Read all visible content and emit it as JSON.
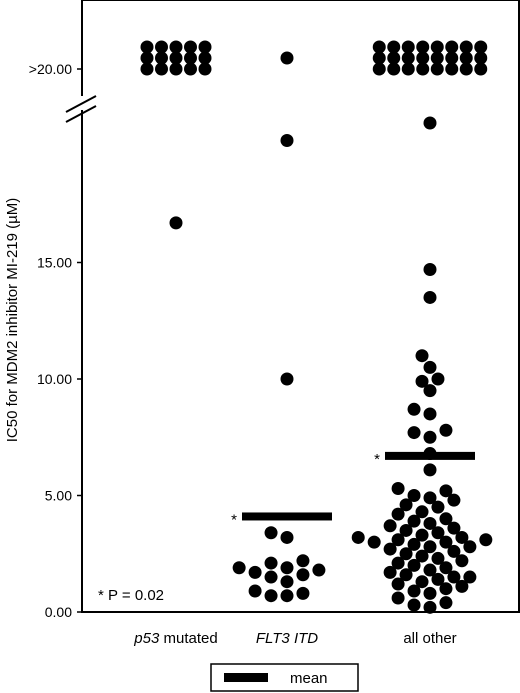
{
  "chart_data": {
    "type": "scatter",
    "ylabel": "IC50 for MDM2 inhibitor MI-219 (µM)",
    "y_ticks": [
      "0.00",
      "5.00",
      "10.00",
      "15.00"
    ],
    "y_top_label": ">20.00",
    "ylim": [
      0,
      22
    ],
    "axis_break": "between 17 and 20",
    "grid": false,
    "categories": [
      {
        "italic": "p53",
        "rest": " mutated"
      },
      {
        "italic": "FLT3 ITD",
        "rest": ""
      },
      {
        "italic": "",
        "rest": "all other"
      }
    ],
    "series": [
      {
        "category": "p53 mutated",
        "above_20": 15,
        "values": [
          16.7
        ],
        "mean": null,
        "mean_marker": ""
      },
      {
        "category": "FLT3 ITD",
        "above_20": 1,
        "values": [
          19.0,
          10.0,
          3.4,
          3.2,
          2.2,
          2.1,
          1.9,
          1.9,
          1.8,
          1.7,
          1.6,
          1.5,
          1.3,
          0.9,
          0.8,
          0.7,
          0.7
        ],
        "mean": 4.1,
        "mean_marker": "*"
      },
      {
        "category": "all other",
        "above_20": 24,
        "values": [
          19.5,
          14.7,
          13.5,
          11.0,
          10.5,
          10.0,
          9.9,
          9.5,
          8.7,
          8.5,
          7.8,
          7.7,
          7.5,
          6.8,
          6.1,
          5.3,
          5.2,
          5.0,
          4.9,
          4.8,
          4.6,
          4.5,
          4.3,
          4.2,
          4.0,
          3.9,
          3.8,
          3.7,
          3.6,
          3.5,
          3.4,
          3.3,
          3.2,
          3.2,
          3.1,
          3.1,
          3.0,
          3.0,
          2.9,
          2.8,
          2.8,
          2.7,
          2.6,
          2.5,
          2.4,
          2.3,
          2.2,
          2.1,
          2.0,
          1.9,
          1.8,
          1.7,
          1.6,
          1.5,
          1.5,
          1.4,
          1.3,
          1.2,
          1.1,
          1.0,
          0.9,
          0.8,
          0.6,
          0.4,
          0.3,
          0.2
        ],
        "mean": 6.7,
        "mean_marker": "*"
      }
    ],
    "annotation": "* P = 0.02",
    "legend": {
      "label": "mean",
      "placement": "bottom-center"
    }
  }
}
